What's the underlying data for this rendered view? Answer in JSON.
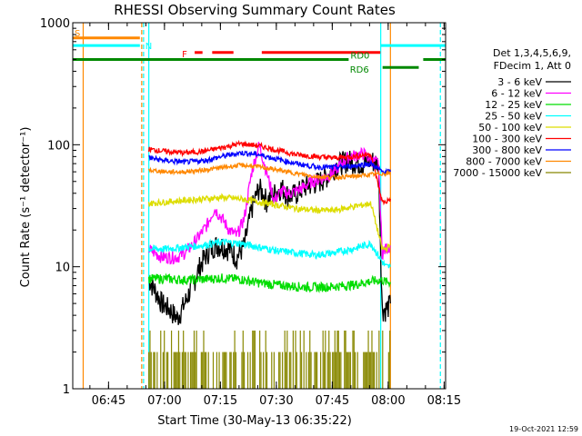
{
  "chart_data": {
    "type": "line",
    "title": "RHESSI Observing Summary Count Rates",
    "xlabel": "Start Time (30-May-13 06:35:22)",
    "ylabel": "Count Rate (s⁻¹ detector⁻¹)",
    "x_unit": "minutes since 06:35:22",
    "xlim": [
      0,
      100
    ],
    "ylim": [
      1,
      1000
    ],
    "y_scale": "log",
    "x_ticks": [
      {
        "t": 9.6,
        "label": "06:45"
      },
      {
        "t": 24.6,
        "label": "07:00"
      },
      {
        "t": 39.6,
        "label": "07:15"
      },
      {
        "t": 54.6,
        "label": "07:30"
      },
      {
        "t": 69.6,
        "label": "07:45"
      },
      {
        "t": 84.6,
        "label": "08:00"
      },
      {
        "t": 99.6,
        "label": "08:15"
      }
    ],
    "y_ticks": [
      {
        "v": 1,
        "label": "1"
      },
      {
        "v": 10,
        "label": "10"
      },
      {
        "v": 100,
        "label": "100"
      },
      {
        "v": 1000,
        "label": "1000"
      }
    ],
    "legend_header": [
      "Det 1,3,4,5,6,9,",
      "FDecim 1, Att 0"
    ],
    "legend_position": "right",
    "data_start": 20.4,
    "data_end": 85.2,
    "series": [
      {
        "name": "3 - 6 keV",
        "color": "#000000",
        "t": [
          20.4,
          22,
          24,
          26,
          28,
          30,
          32,
          34,
          36,
          38,
          40,
          42,
          44,
          46,
          48,
          50,
          52,
          54,
          56,
          58,
          60,
          62,
          64,
          66,
          68,
          70,
          72,
          74,
          76,
          78,
          80,
          82,
          83,
          84,
          85.2
        ],
        "v": [
          8,
          6.5,
          5,
          4.5,
          3.8,
          5,
          7,
          10,
          13,
          15,
          15,
          14,
          12,
          15,
          30,
          45,
          35,
          40,
          45,
          38,
          40,
          45,
          48,
          50,
          55,
          65,
          72,
          75,
          72,
          70,
          75,
          70,
          4.5,
          4.5,
          5
        ]
      },
      {
        "name": "6 - 12 keV",
        "color": "#ff00ff",
        "t": [
          20.4,
          22,
          24,
          26,
          28,
          30,
          32,
          34,
          36,
          38,
          40,
          42,
          44,
          46,
          48,
          50,
          52,
          54,
          56,
          58,
          60,
          62,
          64,
          66,
          68,
          70,
          72,
          74,
          76,
          78,
          80,
          82,
          83,
          84,
          85.2
        ],
        "v": [
          14,
          13,
          12,
          12,
          12,
          13,
          15,
          18,
          22,
          30,
          25,
          20,
          18,
          25,
          60,
          100,
          60,
          35,
          42,
          40,
          42,
          45,
          50,
          52,
          55,
          60,
          70,
          80,
          82,
          85,
          75,
          70,
          13,
          14,
          15
        ]
      },
      {
        "name": "12 - 25 keV",
        "color": "#00dd00",
        "t": [
          20.4,
          25,
          30,
          35,
          40,
          45,
          50,
          55,
          60,
          65,
          70,
          75,
          80,
          83,
          84,
          85.2
        ],
        "v": [
          8,
          8,
          7.8,
          7.9,
          8.1,
          7.9,
          7.4,
          7.1,
          6.9,
          6.8,
          6.9,
          7.1,
          7.6,
          7.8,
          7.5,
          7.5
        ]
      },
      {
        "name": "25 - 50 keV",
        "color": "#00ffff",
        "t": [
          20.4,
          25,
          30,
          35,
          40,
          45,
          50,
          55,
          60,
          65,
          70,
          75,
          80,
          83,
          84,
          85.2
        ],
        "v": [
          14,
          14,
          14.5,
          15,
          16,
          15.5,
          14.5,
          13.5,
          13,
          12.5,
          13,
          14,
          15.5,
          11,
          10,
          10
        ]
      },
      {
        "name": "50 - 100 keV",
        "color": "#dddd00",
        "t": [
          20.4,
          25,
          30,
          35,
          40,
          45,
          50,
          55,
          60,
          65,
          70,
          75,
          80,
          83,
          84,
          85.2
        ],
        "v": [
          33,
          34,
          35,
          36,
          37,
          36,
          34,
          32,
          30,
          29,
          29,
          31,
          33,
          14,
          14,
          15
        ]
      },
      {
        "name": "100 - 300 keV",
        "color": "#ff0000",
        "t": [
          20.4,
          25,
          30,
          35,
          40,
          45,
          50,
          55,
          60,
          65,
          70,
          75,
          80,
          83,
          84,
          85.2
        ],
        "v": [
          92,
          88,
          86,
          88,
          95,
          102,
          98,
          90,
          83,
          80,
          78,
          80,
          84,
          34,
          34,
          36
        ]
      },
      {
        "name": "300 - 800 keV",
        "color": "#0000ff",
        "t": [
          20.4,
          25,
          30,
          35,
          40,
          45,
          50,
          55,
          60,
          65,
          70,
          75,
          80,
          83,
          84,
          85.2
        ],
        "v": [
          78,
          74,
          72,
          74,
          80,
          86,
          83,
          76,
          70,
          66,
          65,
          67,
          70,
          60,
          60,
          60
        ]
      },
      {
        "name": "800 - 7000 keV",
        "color": "#ff8800",
        "t": [
          20.4,
          25,
          30,
          35,
          40,
          45,
          50,
          55,
          60,
          65,
          70,
          75,
          80,
          83,
          84,
          85.2
        ],
        "v": [
          62,
          60,
          60,
          62,
          65,
          68,
          66,
          62,
          58,
          55,
          54,
          55,
          57,
          58,
          58,
          58
        ]
      },
      {
        "name": "7000 - 15000 keV",
        "color": "#888800",
        "t": [
          20.4,
          85.2
        ],
        "v": [
          2,
          2
        ]
      }
    ],
    "flags": [
      {
        "label": "S",
        "color": "#ff8800",
        "segments": [
          [
            0,
            18
          ]
        ],
        "level": 750
      },
      {
        "label": "N",
        "color": "#00ffff",
        "segments": [
          [
            0,
            18
          ],
          [
            82.6,
            100
          ]
        ],
        "level": 650
      },
      {
        "label": "F",
        "color": "#ff0000",
        "segments": [
          [
            32.7,
            34.8
          ],
          [
            37.4,
            43.1
          ],
          [
            50.7,
            82.5
          ]
        ],
        "level": 570
      },
      {
        "label": "RD0",
        "color": "#008800",
        "segments": [
          [
            0,
            74
          ],
          [
            94,
            100
          ]
        ],
        "level": 500
      },
      {
        "label": "RD6",
        "color": "#008800",
        "segments": [
          [
            83.1,
            92.8
          ]
        ],
        "level": 430
      }
    ],
    "vertical_lines": [
      {
        "t": 2.8,
        "color": "#ff8800",
        "style": "solid"
      },
      {
        "t": 18.5,
        "color": "#ff8800",
        "style": "dashed"
      },
      {
        "t": 19.0,
        "color": "#00ffff",
        "style": "dashed"
      },
      {
        "t": 20.4,
        "color": "#00ffff",
        "style": "solid"
      },
      {
        "t": 82.6,
        "color": "#00ffff",
        "style": "solid"
      },
      {
        "t": 85.2,
        "color": "#ff8800",
        "style": "solid"
      },
      {
        "t": 98.6,
        "color": "#00ffff",
        "style": "dashed"
      }
    ],
    "timestamp": "19-Oct-2021 12:59"
  }
}
